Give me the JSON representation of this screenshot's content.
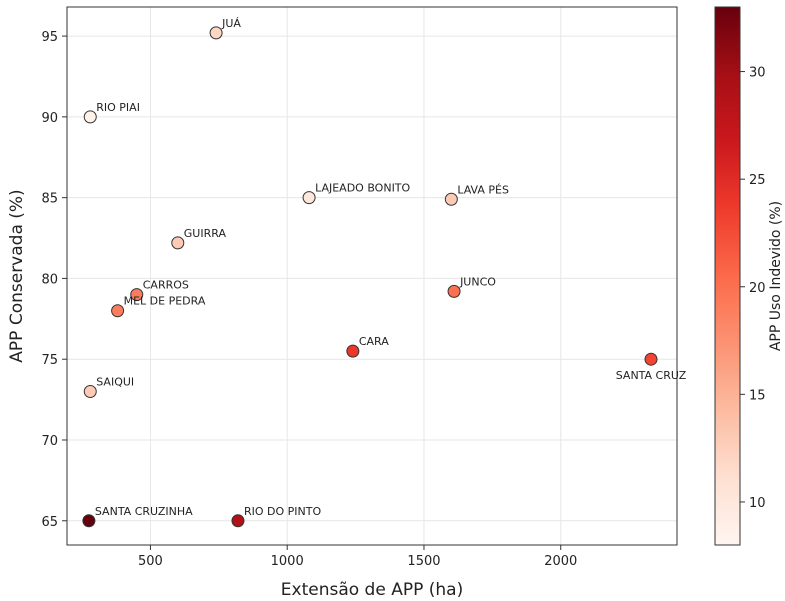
{
  "chart_data": {
    "type": "scatter",
    "xlabel": "Extensão de APP (ha)",
    "ylabel": "APP Conservada (%)",
    "xlim": [
      195,
      2425
    ],
    "ylim": [
      63.5,
      96.8
    ],
    "x_ticks": [
      500,
      1000,
      1500,
      2000
    ],
    "y_ticks": [
      65,
      70,
      75,
      80,
      85,
      90,
      95
    ],
    "grid": true,
    "colorbar": {
      "label": "APP Uso Indevido (%)",
      "range": [
        8,
        33
      ],
      "ticks": [
        10,
        15,
        20,
        25,
        30
      ],
      "colormap": "Reds"
    },
    "points": [
      {
        "name": "JUÁ",
        "x": 740,
        "y": 95.2,
        "c": 12
      },
      {
        "name": "RIO PIAI",
        "x": 280,
        "y": 90.0,
        "c": 8.5
      },
      {
        "name": "LAJEADO BONITO",
        "x": 1080,
        "y": 85.0,
        "c": 10
      },
      {
        "name": "LAVA PÉS",
        "x": 1600,
        "y": 84.9,
        "c": 13
      },
      {
        "name": "GUIRRA",
        "x": 600,
        "y": 82.2,
        "c": 13
      },
      {
        "name": "CARROS",
        "x": 450,
        "y": 79.0,
        "c": 19
      },
      {
        "name": "JUNCO",
        "x": 1610,
        "y": 79.2,
        "c": 20
      },
      {
        "name": "MEL DE PEDRA",
        "x": 380,
        "y": 78.0,
        "c": 19
      },
      {
        "name": "CARA",
        "x": 1240,
        "y": 75.5,
        "c": 24
      },
      {
        "name": "SANTA CRUZ",
        "x": 2330,
        "y": 75.0,
        "c": 23
      },
      {
        "name": "SAIQUI",
        "x": 280,
        "y": 73.0,
        "c": 13
      },
      {
        "name": "SANTA CRUZINHA",
        "x": 275,
        "y": 65.0,
        "c": 33
      },
      {
        "name": "RIO DO PINTO",
        "x": 820,
        "y": 65.0,
        "c": 29
      }
    ]
  }
}
